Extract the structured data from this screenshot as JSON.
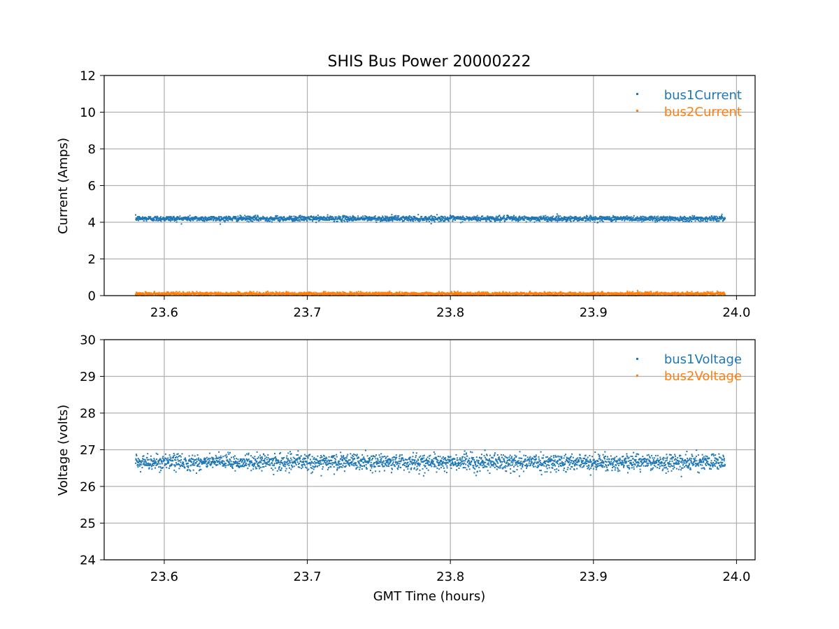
{
  "title": "SHIS Bus Power 20000222",
  "colors": {
    "series1": "#1f77b4",
    "series2": "#ff7f0e",
    "grid": "#b0b0b0"
  },
  "chart_data": [
    {
      "type": "scatter",
      "title": "SHIS Bus Power 20000222",
      "xlabel": "",
      "ylabel": "Current (Amps)",
      "xlim": [
        23.558,
        24.013
      ],
      "ylim": [
        0,
        12
      ],
      "x_ticks": [
        "23.6",
        "23.7",
        "23.8",
        "23.9",
        "24.0"
      ],
      "y_ticks": [
        "0",
        "2",
        "4",
        "6",
        "8",
        "10",
        "12"
      ],
      "grid": true,
      "legend_position": "top-right",
      "x_range": [
        23.58,
        23.992
      ],
      "series": [
        {
          "name": "bus1Current",
          "color": "#1f77b4",
          "mean": 4.2,
          "spread": 0.12,
          "samples": 2500
        },
        {
          "name": "bus2Current",
          "color": "#ff7f0e",
          "mean": 0.1,
          "spread": 0.08,
          "samples": 2500
        }
      ]
    },
    {
      "type": "scatter",
      "title": "",
      "xlabel": "GMT Time (hours)",
      "ylabel": "Voltage (volts)",
      "xlim": [
        23.558,
        24.013
      ],
      "ylim": [
        24,
        30
      ],
      "x_ticks": [
        "23.6",
        "23.7",
        "23.8",
        "23.9",
        "24.0"
      ],
      "y_ticks": [
        "24",
        "25",
        "26",
        "27",
        "28",
        "29",
        "30"
      ],
      "grid": true,
      "legend_position": "top-right",
      "x_range": [
        23.58,
        23.992
      ],
      "series": [
        {
          "name": "bus1Voltage",
          "color": "#1f77b4",
          "mean": 26.66,
          "spread": 0.18,
          "samples": 2500
        },
        {
          "name": "bus2Voltage",
          "color": "#ff7f0e",
          "mean": null,
          "spread": 0,
          "samples": 0
        }
      ]
    }
  ]
}
